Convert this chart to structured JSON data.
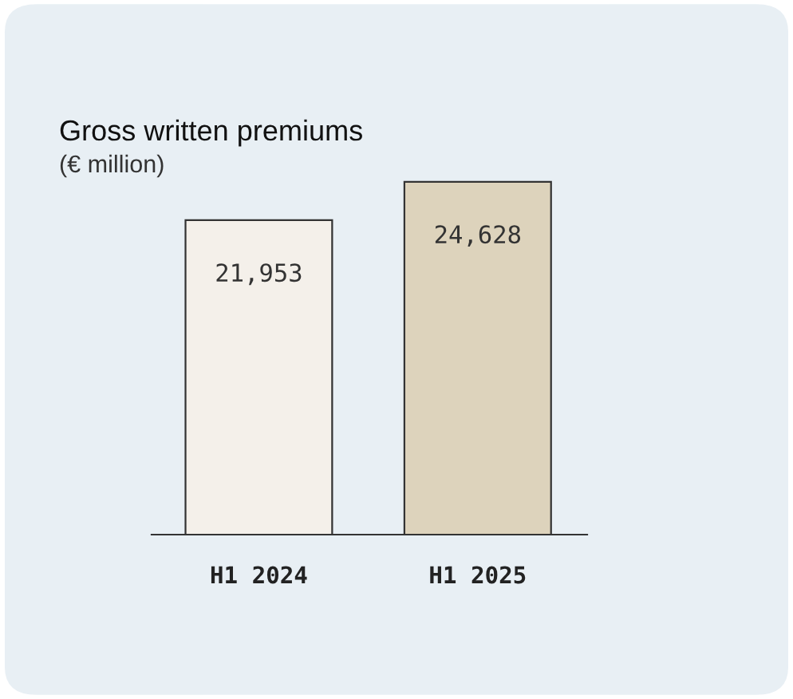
{
  "chart_data": {
    "type": "bar",
    "title": "Gross written premiums",
    "subtitle": "(€ million)",
    "categories": [
      "H1 2024",
      "H1 2025"
    ],
    "values": [
      21953,
      24628
    ],
    "colors": [
      "#f4f0ea",
      "#ddd3bc"
    ],
    "data_labels": true,
    "value_labels": [
      "21,953",
      "24,628"
    ]
  }
}
